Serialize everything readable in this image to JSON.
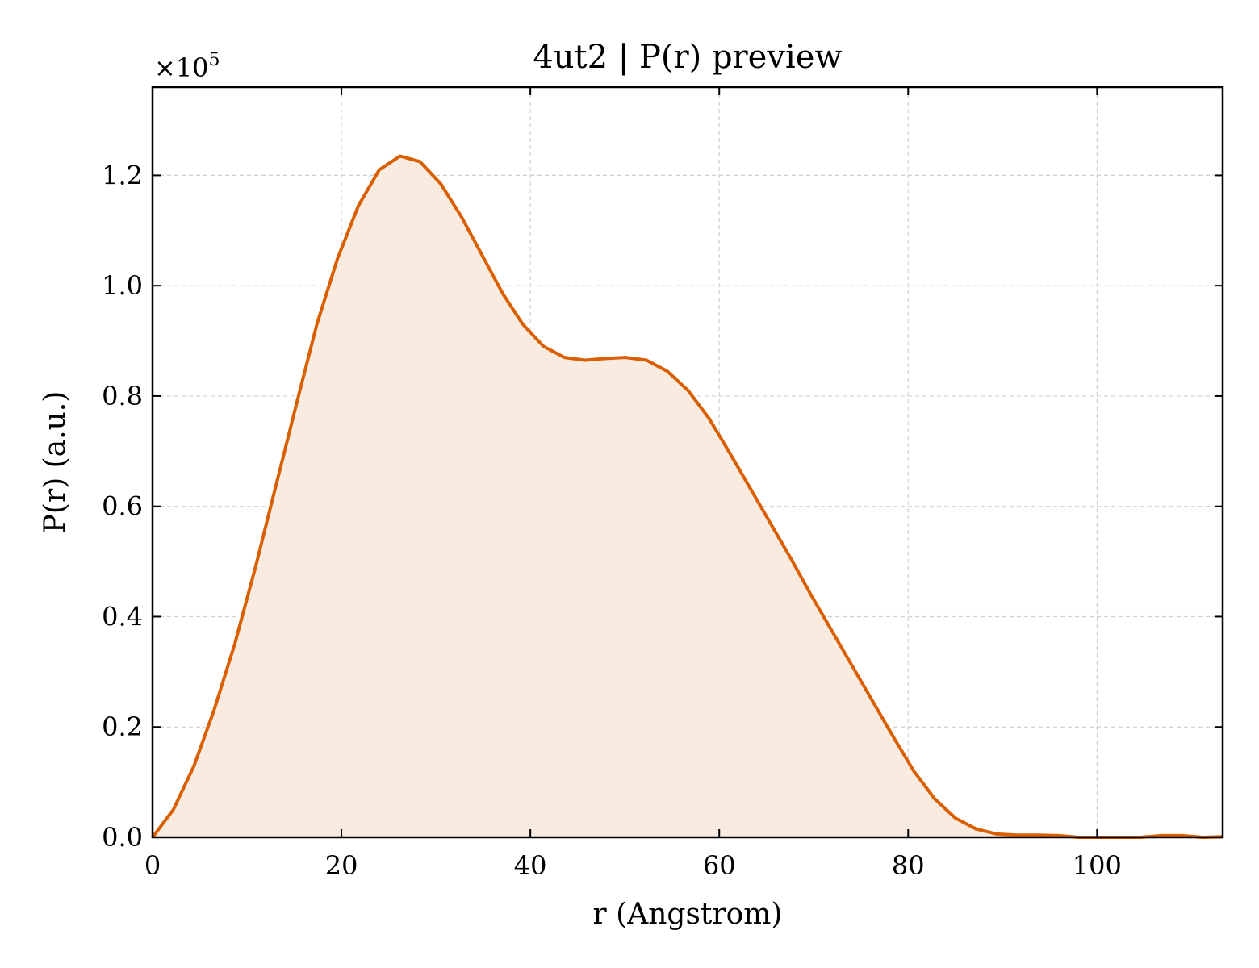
{
  "chart_data": {
    "type": "area",
    "title": "4ut2 | P(r) preview",
    "xlabel": "r (Angstrom)",
    "ylabel": "P(r) (a.u.)",
    "y_multiplier": {
      "base": "×10",
      "exp": "5"
    },
    "xlim": [
      0,
      113.3
    ],
    "ylim": [
      0,
      1.36
    ],
    "xticks": [
      0,
      20,
      40,
      60,
      80,
      100
    ],
    "xtick_labels": [
      "0",
      "20",
      "40",
      "60",
      "80",
      "100"
    ],
    "yticks": [
      0,
      0.2,
      0.4,
      0.6,
      0.8,
      1.0,
      1.2
    ],
    "ytick_labels": [
      "0.0",
      "0.2",
      "0.4",
      "0.6",
      "0.8",
      "1.0",
      "1.2"
    ],
    "grid": true,
    "colors": {
      "line": "#d95f02",
      "fill": "#f9ebe0"
    },
    "series": [
      {
        "x": [
          0,
          2.2,
          4.4,
          6.5,
          8.7,
          10.9,
          13.1,
          15.3,
          17.4,
          19.6,
          21.8,
          24.0,
          26.2,
          28.3,
          30.5,
          32.7,
          34.9,
          37.1,
          39.2,
          41.4,
          43.6,
          45.8,
          48.0,
          50.1,
          52.3,
          54.5,
          56.7,
          58.9,
          61.0,
          63.2,
          65.4,
          67.6,
          69.7,
          71.9,
          74.1,
          76.3,
          78.5,
          80.6,
          82.8,
          85.0,
          87.2,
          89.4,
          91.5,
          93.7,
          95.9,
          98.1,
          100.3,
          102.4,
          104.6,
          106.8,
          109.0,
          111.2,
          113.3
        ],
        "y": [
          0.0,
          0.05,
          0.13,
          0.23,
          0.35,
          0.49,
          0.64,
          0.79,
          0.93,
          1.05,
          1.145,
          1.21,
          1.235,
          1.225,
          1.185,
          1.125,
          1.055,
          0.985,
          0.93,
          0.89,
          0.87,
          0.865,
          0.868,
          0.87,
          0.865,
          0.845,
          0.81,
          0.76,
          0.7,
          0.635,
          0.57,
          0.505,
          0.44,
          0.375,
          0.31,
          0.245,
          0.18,
          0.12,
          0.07,
          0.035,
          0.015,
          0.006,
          0.004,
          0.004,
          0.003,
          0.0,
          -0.002,
          -0.003,
          0.0,
          0.003,
          0.003,
          0.0,
          0.001
        ]
      }
    ]
  }
}
